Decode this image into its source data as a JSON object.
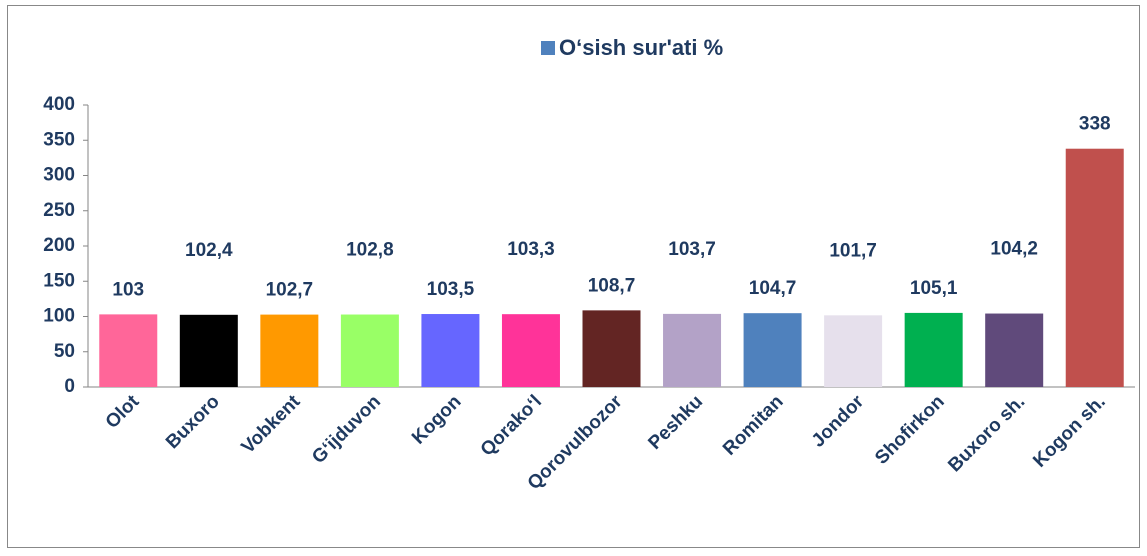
{
  "chart_data": {
    "type": "bar",
    "categories": [
      "Olot",
      "Buxoro",
      "Vobkent",
      "G‘ijduvon",
      "Kogon",
      "Qorako‘l",
      "Qorovulbozor",
      "Peshku",
      "Romitan",
      "Jondor",
      "Shofirkon",
      "Buxoro sh.",
      "Kogon sh."
    ],
    "series": [
      {
        "name": "O‘sish sur'ati %",
        "color": "#4f81bd",
        "colors": [
          "#ff6699",
          "#000000",
          "#ff9900",
          "#99ff66",
          "#6666ff",
          "#ff3399",
          "#632523",
          "#b3a2c7",
          "#4f81bd",
          "#e6e0ec",
          "#00b050",
          "#604a7b",
          "#c0504d"
        ],
        "values": [
          103,
          102.4,
          102.7,
          102.8,
          103.5,
          103.3,
          108.7,
          103.7,
          104.7,
          101.7,
          105.1,
          104.2,
          338
        ],
        "value_labels": [
          "103",
          "102,4",
          "102,7",
          "102,8",
          "103,5",
          "103,3",
          "108,7",
          "103,7",
          "104,7",
          "101,7",
          "105,1",
          "104,2",
          "338"
        ]
      }
    ],
    "ylim": [
      0,
      400
    ],
    "yticks": [
      0,
      50,
      100,
      150,
      200,
      250,
      300,
      350,
      400
    ],
    "legend": "top"
  }
}
